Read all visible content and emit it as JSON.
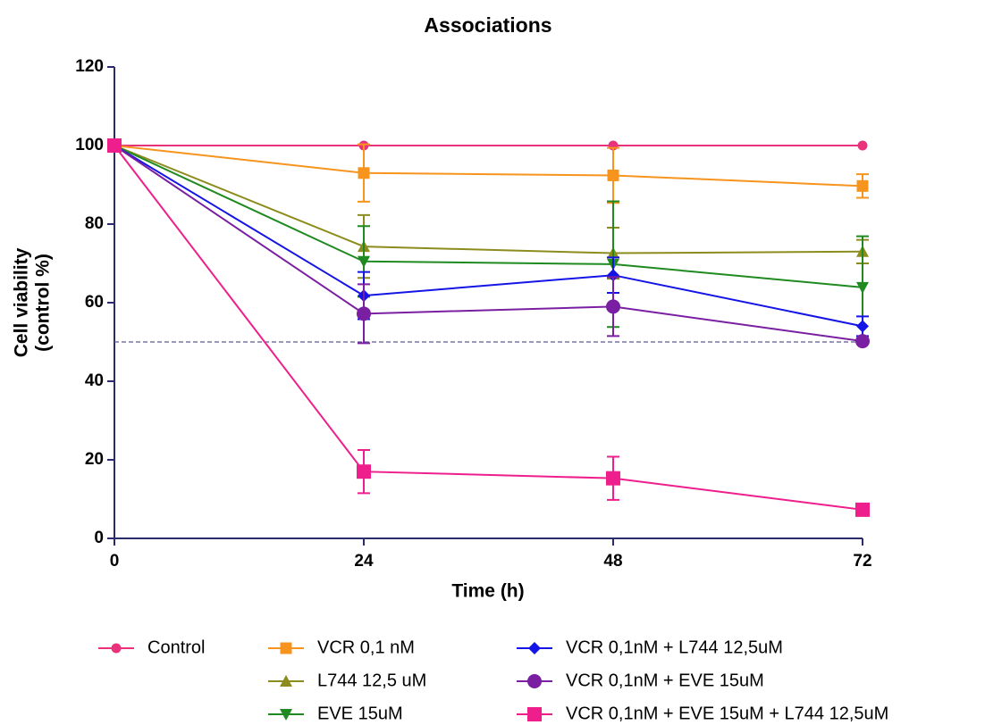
{
  "chart_data": {
    "type": "line",
    "title": "Associations",
    "x_label": "Time (h)",
    "y_label": [
      "Cell viability",
      "(control %)"
    ],
    "x": [
      0,
      24,
      48,
      72
    ],
    "xlim": [
      0,
      72
    ],
    "xticks": [
      0,
      24,
      48,
      72
    ],
    "ylim": [
      0,
      120
    ],
    "yticks": [
      0,
      20,
      40,
      60,
      80,
      100,
      120
    ],
    "reference_line": 50,
    "series": [
      {
        "name": "Control",
        "color": "#e8327c",
        "marker": "circle",
        "values": [
          100,
          100,
          100,
          100
        ],
        "errors": [
          null,
          null,
          null,
          null
        ]
      },
      {
        "name": "VCR 0,1 nM",
        "color": "#f7941d",
        "marker": "square",
        "values": [
          100,
          93,
          92.4,
          89.7
        ],
        "errors": [
          null,
          7.3,
          7,
          3
        ]
      },
      {
        "name": "L744 12,5 uM",
        "color": "#8c8c1e",
        "marker": "triangle-up",
        "values": [
          100,
          74.3,
          72.6,
          73
        ],
        "errors": [
          null,
          8,
          6.5,
          3
        ]
      },
      {
        "name": "EVE 15uM",
        "color": "#1f8a1f",
        "marker": "triangle-down",
        "values": [
          100,
          70.5,
          69.8,
          63.9
        ],
        "errors": [
          null,
          9,
          16,
          13
        ]
      },
      {
        "name": "VCR 0,1nM + L744 12,5uM",
        "color": "#1414e6",
        "marker": "diamond",
        "values": [
          100,
          61.8,
          67,
          54
        ],
        "errors": [
          null,
          6,
          4.5,
          2.5
        ]
      },
      {
        "name": "VCR 0,1nM + EVE 15uM",
        "color": "#7a1fa2",
        "marker": "circle-large",
        "values": [
          100,
          57.2,
          59,
          50.2
        ],
        "errors": [
          null,
          7.5,
          7.5,
          0.5
        ]
      },
      {
        "name": "VCR 0,1nM + EVE 15uM + L744 12,5uM",
        "color": "#ee1f8c",
        "marker": "square-large",
        "values": [
          100,
          17,
          15.3,
          7.3
        ],
        "errors": [
          null,
          5.5,
          5.5,
          0.5
        ]
      }
    ]
  }
}
